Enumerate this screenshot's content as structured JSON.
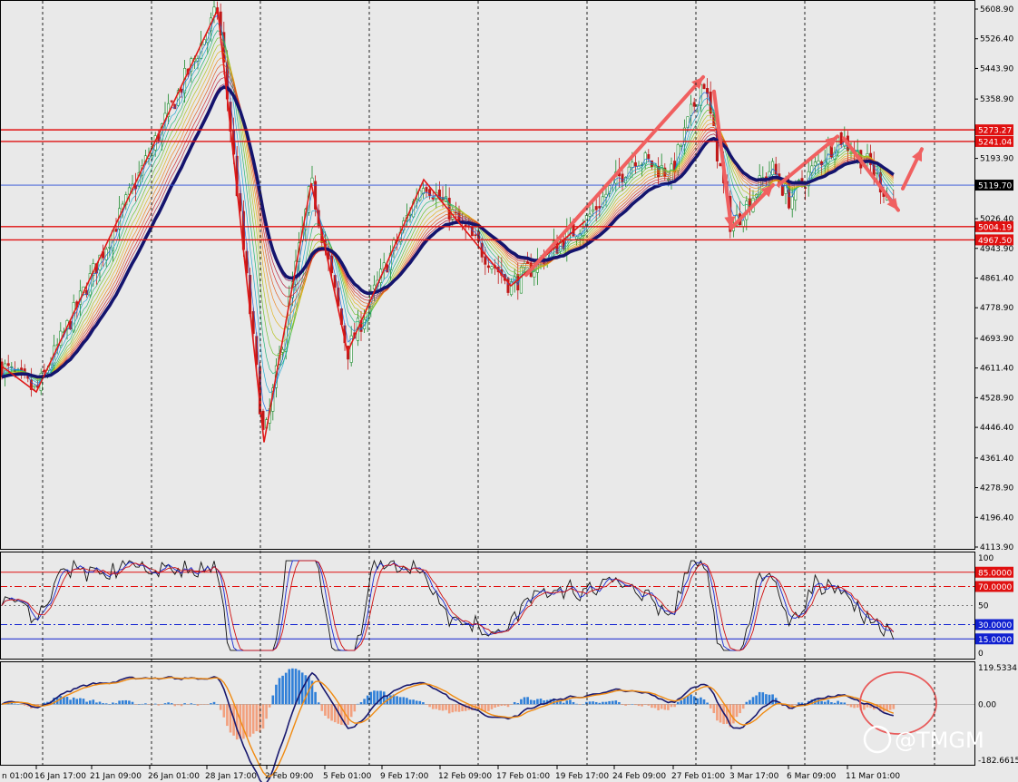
{
  "chart_data": [
    {
      "type": "candlestick",
      "title": "",
      "price_ticks": [
        "5608.90",
        "5526.40",
        "5443.90",
        "5358.90",
        "5193.90",
        "5026.40",
        "4943.90",
        "4861.40",
        "4778.90",
        "4693.90",
        "4611.40",
        "4528.90",
        "4446.40",
        "4361.40",
        "4278.90",
        "4196.40",
        "4113.90"
      ],
      "x_labels": [
        "16 Jan 17:00",
        "21 Jan 09:00",
        "26 Jan 01:00",
        "28 Jan 17:00",
        "2 Feb 09:00",
        "5 Feb 01:00",
        "9 Feb 17:00",
        "12 Feb 09:00",
        "17 Feb 01:00",
        "19 Feb 17:00",
        "24 Feb 09:00",
        "27 Feb 01:00",
        "3 Mar 17:00",
        "6 Mar 09:00",
        "11 Mar 01:00"
      ],
      "x_label_partial": "n 01:00",
      "price_levels": [
        {
          "label": "5273.27",
          "value": 5273.27,
          "color": "#e01010"
        },
        {
          "label": "5241.04",
          "value": 5241.04,
          "color": "#e01010"
        },
        {
          "label": "5004.19",
          "value": 5004.19,
          "color": "#e01010"
        },
        {
          "label": "4967.50",
          "value": 4967.5,
          "color": "#e01010"
        }
      ],
      "current_price": {
        "label": "5119.70",
        "value": 5119.7,
        "color": "#2b4fd6"
      },
      "zigzag": [
        {
          "t": 0,
          "p": 4620
        },
        {
          "t": 40,
          "p": 4545
        },
        {
          "t": 240,
          "p": 5608
        },
        {
          "t": 291,
          "p": 4405
        },
        {
          "t": 343,
          "p": 5125
        },
        {
          "t": 383,
          "p": 4655
        },
        {
          "t": 467,
          "p": 5135
        },
        {
          "t": 563,
          "p": 4840
        },
        {
          "t": 645,
          "p": 5020
        }
      ],
      "arrows": [
        {
          "from": {
            "t": 580,
            "p": 4870
          },
          "to": {
            "t": 775,
            "p": 5420
          }
        },
        {
          "from": {
            "t": 787,
            "p": 5380
          },
          "to": {
            "t": 806,
            "p": 5000
          }
        },
        {
          "from": {
            "t": 806,
            "p": 5000
          },
          "to": {
            "t": 852,
            "p": 5120
          }
        },
        {
          "from": {
            "t": 858,
            "p": 5120
          },
          "to": {
            "t": 923,
            "p": 5255
          }
        },
        {
          "from": {
            "t": 930,
            "p": 5250
          },
          "to": {
            "t": 990,
            "p": 5050
          }
        },
        {
          "from": {
            "t": 995,
            "p": 5110
          },
          "to": {
            "t": 1016,
            "p": 5220
          }
        }
      ],
      "colors": {
        "bull": "#1a8a2a",
        "bear": "#c01818",
        "ma": "#14146e",
        "zigzag": "#e01818",
        "arrow": "#f06060"
      }
    },
    {
      "type": "line",
      "title": "",
      "ylim": [
        0,
        100
      ],
      "ticks": [
        "100",
        "50",
        "0"
      ],
      "levels": [
        {
          "label": "85.0000",
          "value": 85,
          "color": "#e01010",
          "style": "solid"
        },
        {
          "label": "70.0000",
          "value": 70,
          "color": "#e01010",
          "style": "dashdot"
        },
        {
          "label": "30.0000",
          "value": 30,
          "color": "#1020d0",
          "style": "dashdot"
        },
        {
          "label": "15.0000",
          "value": 15,
          "color": "#1020d0",
          "style": "solid"
        }
      ],
      "series_colors": [
        "#111111",
        "#1a2ad0",
        "#d01010"
      ]
    },
    {
      "type": "histogram",
      "title": "",
      "ticks": [
        "119.5334",
        "0.00",
        "-182.6615"
      ],
      "ylim": [
        -182.6615,
        119.5334
      ],
      "colors": {
        "positive": "#2f7fd8",
        "negative": "#f2a07e",
        "line1": "#18186e",
        "line2": "#f08a10",
        "circle": "#e85a5a"
      }
    }
  ],
  "watermark": "@TMGM"
}
